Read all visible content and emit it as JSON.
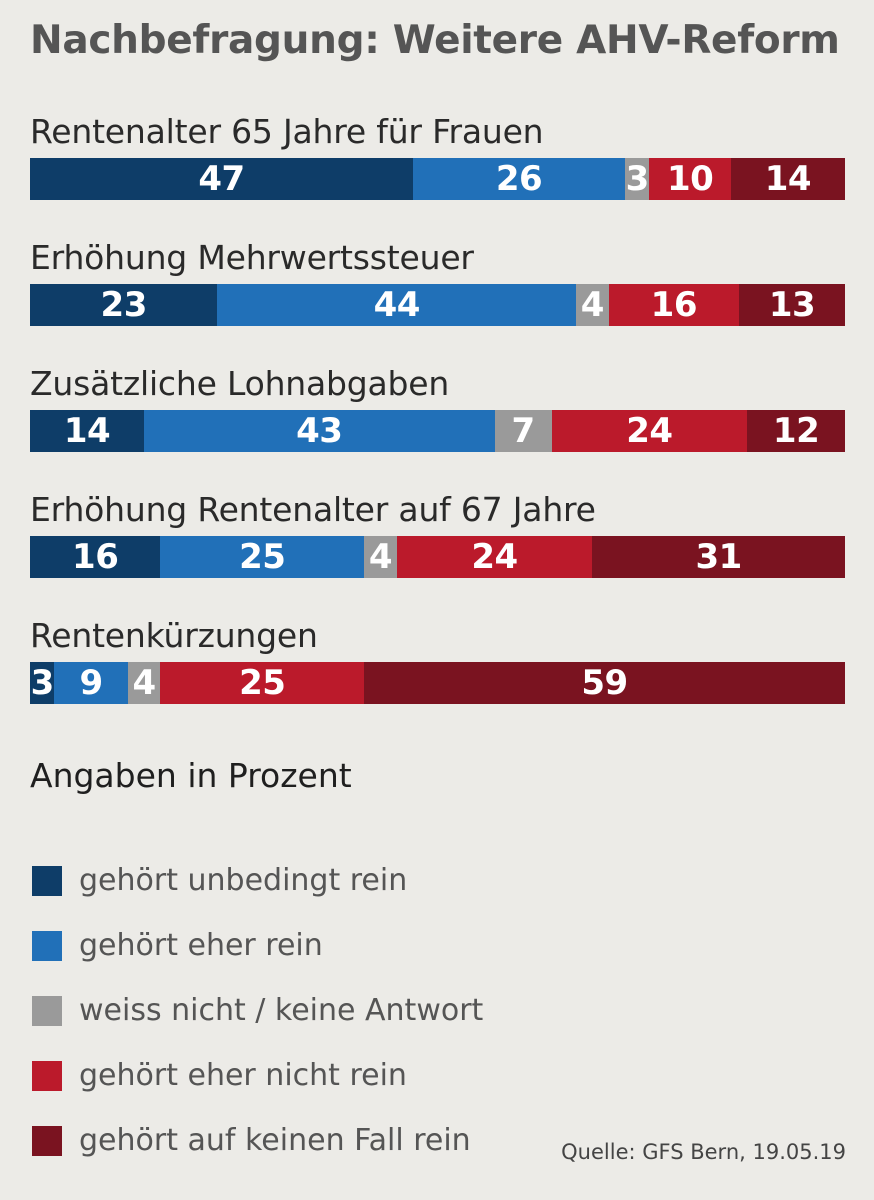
{
  "title": "Nachbefragung: Weitere AHV-Reform",
  "note": "Angaben in Prozent",
  "source": "Quelle: GFS Bern, 19.05.19",
  "colors": [
    "#0e3d68",
    "#2170b8",
    "#9a9a9a",
    "#bb1a2b",
    "#7a1320"
  ],
  "chart_data": {
    "type": "bar",
    "orientation": "horizontal",
    "stacked": true,
    "title": "Nachbefragung: Weitere AHV-Reform",
    "unit": "Angaben in Prozent",
    "xlim": [
      0,
      100
    ],
    "categories": [
      "Rentenalter 65 Jahre für Frauen",
      "Erhöhung Mehrwertssteuer",
      "Zusätzliche Lohnabgaben",
      "Erhöhung Rentenalter auf 67 Jahre",
      "Rentenkürzungen"
    ],
    "series": [
      {
        "name": "gehört unbedingt rein",
        "color": "#0e3d68",
        "values": [
          47,
          23,
          14,
          16,
          3
        ]
      },
      {
        "name": "gehört eher rein",
        "color": "#2170b8",
        "values": [
          26,
          44,
          43,
          25,
          9
        ]
      },
      {
        "name": "weiss nicht / keine Antwort",
        "color": "#9a9a9a",
        "values": [
          3,
          4,
          7,
          4,
          4
        ]
      },
      {
        "name": "gehört eher nicht rein",
        "color": "#bb1a2b",
        "values": [
          10,
          16,
          24,
          24,
          25
        ]
      },
      {
        "name": "gehört auf keinen Fall rein",
        "color": "#7a1320",
        "values": [
          14,
          13,
          12,
          31,
          59
        ]
      }
    ],
    "legend": "bottom-left",
    "grid": false
  }
}
